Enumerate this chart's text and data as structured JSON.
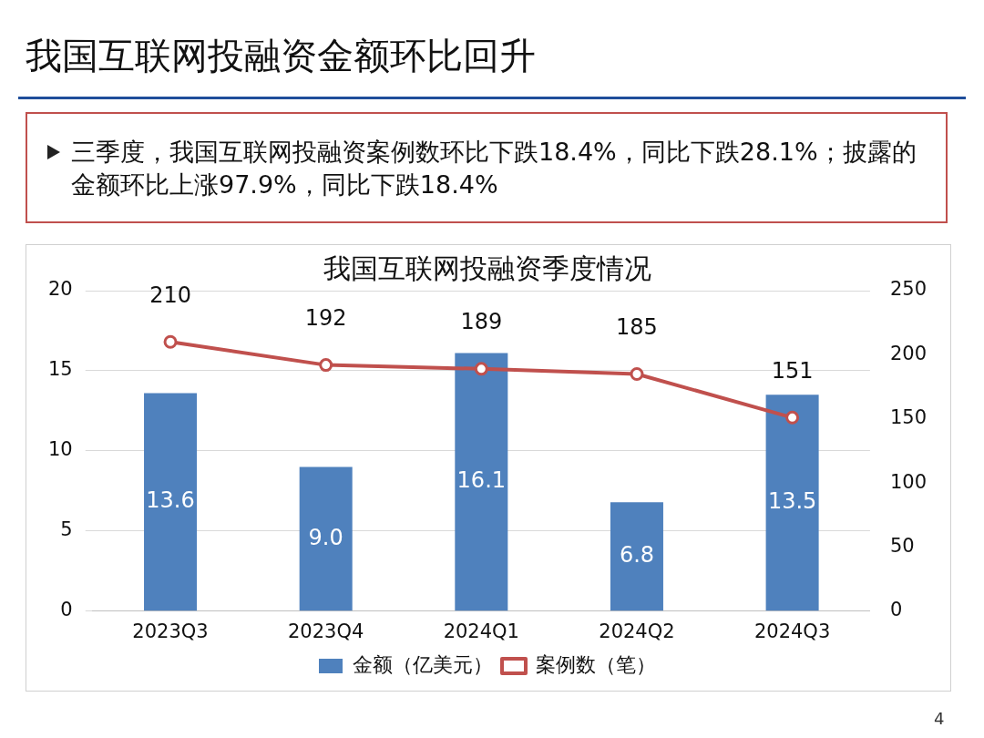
{
  "chart_data": {
    "type": "bar",
    "title": "我国互联网投融资金额环比回升",
    "subtitle": "我国互联网投融资季度情况",
    "annotations": [
      "三季度，我国互联网投融资案例数环比下跌18.4%，同比下跌28.1%；披露的金额环比上涨97.9%，同比下跌18.4%",
      "4"
    ],
    "categories": [
      "2023Q3",
      "2023Q4",
      "2024Q1",
      "2024Q2",
      "2024Q3"
    ],
    "series": [
      {
        "name": "金额（亿美元）",
        "color": "#4f81bd",
        "values": [
          13.6,
          9.0,
          16.1,
          6.8,
          13.5
        ],
        "value_labels": [
          "13.6",
          "9.0",
          "16.1",
          "6.8",
          "13.5"
        ]
      },
      {
        "name": "案例数（笔）",
        "type": "line",
        "axis": "y2",
        "color": "#c0504d",
        "values": [
          210,
          192,
          189,
          185,
          151
        ],
        "value_labels": [
          "210",
          "192",
          "189",
          "185",
          "151"
        ]
      }
    ],
    "ylim": [
      0,
      20
    ],
    "yticks": [
      0,
      5,
      10,
      15,
      20
    ],
    "y2lim": [
      0,
      250
    ],
    "y2ticks": [
      0,
      50,
      100,
      150,
      200,
      250
    ],
    "grid": "y",
    "legend": "bottom",
    "marker": "circle",
    "line_style": "solid"
  }
}
